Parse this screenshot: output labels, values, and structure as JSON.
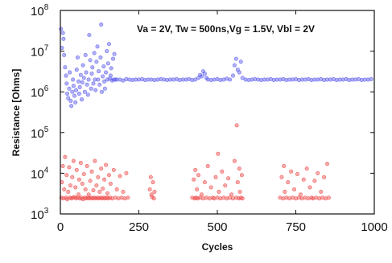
{
  "chart_data": {
    "type": "scatter",
    "annotation": "Va = 2V, Tw = 500ns,Vg = 1.5V, Vbl = 2V",
    "xlabel": "Cycles",
    "ylabel": "Resistance [Ohms]",
    "xlim": [
      0,
      1000
    ],
    "ylim": [
      1000,
      100000000
    ],
    "yscale": "log",
    "xticks": [
      0,
      250,
      500,
      750,
      1000
    ],
    "xtick_labels": [
      "0",
      "250",
      "500",
      "750",
      "1000"
    ],
    "yticks": [
      1000,
      10000,
      100000,
      1000000,
      10000000,
      100000000
    ],
    "ytick_bases": [
      "10",
      "10",
      "10",
      "10",
      "10",
      "10"
    ],
    "ytick_exponents": [
      "3",
      "4",
      "5",
      "6",
      "7",
      "8"
    ],
    "grid": false,
    "legend": "none",
    "colors": {
      "high_resistance": "#5555ee",
      "low_resistance": "#ee4444"
    },
    "series": [
      {
        "values": [
          [
            2,
            35000000
          ],
          [
            5,
            12000000
          ],
          [
            8,
            28000000
          ],
          [
            10,
            20000000
          ],
          [
            12,
            8000000
          ],
          [
            15,
            4000000
          ],
          [
            18,
            2500000
          ],
          [
            20,
            1600000
          ],
          [
            22,
            900000
          ],
          [
            25,
            700000
          ],
          [
            28,
            1200000
          ],
          [
            30,
            3000000
          ],
          [
            33,
            600000
          ],
          [
            35,
            450000
          ],
          [
            38,
            1000000
          ],
          [
            40,
            2000000
          ],
          [
            42,
            1400000
          ],
          [
            45,
            800000
          ],
          [
            48,
            550000
          ],
          [
            50,
            1100000
          ],
          [
            52,
            3500000
          ],
          [
            55,
            7000000
          ],
          [
            58,
            1800000
          ],
          [
            60,
            900000
          ],
          [
            62,
            1300000
          ],
          [
            65,
            2600000
          ],
          [
            68,
            650000
          ],
          [
            70,
            1700000
          ],
          [
            72,
            4500000
          ],
          [
            75,
            2200000
          ],
          [
            78,
            1000000
          ],
          [
            80,
            8000000
          ],
          [
            82,
            3000000
          ],
          [
            85,
            1500000
          ],
          [
            88,
            850000
          ],
          [
            90,
            2000000
          ],
          [
            92,
            25000000
          ],
          [
            95,
            6000000
          ],
          [
            98,
            1200000
          ],
          [
            100,
            2800000
          ],
          [
            102,
            4000000
          ],
          [
            105,
            1600000
          ],
          [
            108,
            9000000
          ],
          [
            110,
            2000000
          ],
          [
            112,
            1100000
          ],
          [
            115,
            5500000
          ],
          [
            118,
            13000000
          ],
          [
            120,
            2000000
          ],
          [
            122,
            3200000
          ],
          [
            125,
            1500000
          ],
          [
            128,
            7000000
          ],
          [
            130,
            45000000
          ],
          [
            132,
            1000000
          ],
          [
            135,
            2400000
          ],
          [
            138,
            4200000
          ],
          [
            140,
            1800000
          ],
          [
            142,
            1200000
          ],
          [
            145,
            3000000
          ],
          [
            148,
            10000000
          ],
          [
            150,
            2000000
          ],
          [
            152,
            5000000
          ],
          [
            155,
            15000000
          ],
          [
            158,
            2100000
          ],
          [
            160,
            2500000
          ],
          [
            162,
            3800000
          ],
          [
            165,
            1900000
          ],
          [
            168,
            6500000
          ],
          [
            170,
            2000000
          ],
          [
            172,
            8500000
          ],
          [
            175,
            2000000
          ],
          [
            180,
            2000000
          ],
          [
            190,
            2000000
          ],
          [
            200,
            1900000
          ],
          [
            210,
            2050000
          ],
          [
            220,
            2000000
          ],
          [
            230,
            1950000
          ],
          [
            240,
            2000000
          ],
          [
            250,
            2000000
          ],
          [
            260,
            2050000
          ],
          [
            270,
            1950000
          ],
          [
            280,
            2000000
          ],
          [
            290,
            2000000
          ],
          [
            300,
            1950000
          ],
          [
            310,
            2000000
          ],
          [
            320,
            2050000
          ],
          [
            330,
            2000000
          ],
          [
            340,
            1950000
          ],
          [
            350,
            2000000
          ],
          [
            360,
            2000000
          ],
          [
            370,
            2050000
          ],
          [
            380,
            1950000
          ],
          [
            390,
            2000000
          ],
          [
            400,
            2000000
          ],
          [
            410,
            2050000
          ],
          [
            420,
            1950000
          ],
          [
            430,
            2000000
          ],
          [
            440,
            2200000
          ],
          [
            445,
            2600000
          ],
          [
            450,
            2400000
          ],
          [
            455,
            3200000
          ],
          [
            460,
            2800000
          ],
          [
            465,
            2200000
          ],
          [
            470,
            2000000
          ],
          [
            480,
            1950000
          ],
          [
            490,
            2000000
          ],
          [
            500,
            2050000
          ],
          [
            510,
            1950000
          ],
          [
            520,
            2000000
          ],
          [
            530,
            2100000
          ],
          [
            540,
            2000000
          ],
          [
            550,
            2500000
          ],
          [
            555,
            4500000
          ],
          [
            560,
            6500000
          ],
          [
            565,
            3500000
          ],
          [
            570,
            3000000
          ],
          [
            575,
            5500000
          ],
          [
            580,
            2200000
          ],
          [
            590,
            2000000
          ],
          [
            600,
            1950000
          ],
          [
            610,
            2000000
          ],
          [
            620,
            2050000
          ],
          [
            630,
            2000000
          ],
          [
            640,
            1950000
          ],
          [
            650,
            2000000
          ],
          [
            660,
            2000000
          ],
          [
            670,
            2050000
          ],
          [
            680,
            1950000
          ],
          [
            690,
            2000000
          ],
          [
            700,
            2000000
          ],
          [
            710,
            2050000
          ],
          [
            720,
            1950000
          ],
          [
            730,
            2000000
          ],
          [
            740,
            2000000
          ],
          [
            750,
            2050000
          ],
          [
            760,
            1950000
          ],
          [
            770,
            2000000
          ],
          [
            780,
            2000000
          ],
          [
            790,
            2050000
          ],
          [
            800,
            1950000
          ],
          [
            810,
            2000000
          ],
          [
            820,
            2000000
          ],
          [
            830,
            2050000
          ],
          [
            840,
            1950000
          ],
          [
            850,
            2000000
          ],
          [
            860,
            2000000
          ],
          [
            870,
            2050000
          ],
          [
            880,
            1950000
          ],
          [
            890,
            2000000
          ],
          [
            900,
            2000000
          ],
          [
            910,
            2050000
          ],
          [
            920,
            1950000
          ],
          [
            930,
            2000000
          ],
          [
            940,
            2000000
          ],
          [
            950,
            2050000
          ],
          [
            960,
            1950000
          ],
          [
            970,
            2000000
          ],
          [
            980,
            2000000
          ],
          [
            990,
            2050000
          ]
        ]
      },
      {
        "values": [
          [
            3,
            2500
          ],
          [
            5,
            6000
          ],
          [
            8,
            15000
          ],
          [
            10,
            2400
          ],
          [
            12,
            4000
          ],
          [
            15,
            25000
          ],
          [
            18,
            2500
          ],
          [
            20,
            9000
          ],
          [
            22,
            2300
          ],
          [
            25,
            3500
          ],
          [
            28,
            14000
          ],
          [
            30,
            2500
          ],
          [
            32,
            5000
          ],
          [
            35,
            2400
          ],
          [
            38,
            8000
          ],
          [
            40,
            2500
          ],
          [
            42,
            20000
          ],
          [
            45,
            2600
          ],
          [
            48,
            4500
          ],
          [
            50,
            2400
          ],
          [
            52,
            12000
          ],
          [
            55,
            2500
          ],
          [
            58,
            3000
          ],
          [
            60,
            7000
          ],
          [
            62,
            2400
          ],
          [
            65,
            18000
          ],
          [
            68,
            2500
          ],
          [
            70,
            5500
          ],
          [
            72,
            2300
          ],
          [
            75,
            9500
          ],
          [
            78,
            2500
          ],
          [
            80,
            4000
          ],
          [
            82,
            2400
          ],
          [
            85,
            15000
          ],
          [
            88,
            2500
          ],
          [
            90,
            3000
          ],
          [
            92,
            2400
          ],
          [
            95,
            6500
          ],
          [
            98,
            2500
          ],
          [
            100,
            11000
          ],
          [
            102,
            2400
          ],
          [
            105,
            3800
          ],
          [
            108,
            2500
          ],
          [
            110,
            20000
          ],
          [
            112,
            2400
          ],
          [
            115,
            5000
          ],
          [
            118,
            2500
          ],
          [
            120,
            8000
          ],
          [
            122,
            2400
          ],
          [
            125,
            3500
          ],
          [
            128,
            2500
          ],
          [
            130,
            13000
          ],
          [
            132,
            2400
          ],
          [
            135,
            4200
          ],
          [
            138,
            2500
          ],
          [
            140,
            7000
          ],
          [
            142,
            2400
          ],
          [
            145,
            16000
          ],
          [
            148,
            2500
          ],
          [
            150,
            3200
          ],
          [
            152,
            2400
          ],
          [
            155,
            9000
          ],
          [
            158,
            2500
          ],
          [
            160,
            5500
          ],
          [
            165,
            2400
          ],
          [
            170,
            12000
          ],
          [
            175,
            2500
          ],
          [
            180,
            4000
          ],
          [
            185,
            2400
          ],
          [
            190,
            8500
          ],
          [
            195,
            2500
          ],
          [
            200,
            3500
          ],
          [
            205,
            2400
          ],
          [
            210,
            10000
          ],
          [
            215,
            2500
          ],
          [
            285,
            4000
          ],
          [
            288,
            8000
          ],
          [
            290,
            3000
          ],
          [
            292,
            2600
          ],
          [
            295,
            6000
          ],
          [
            298,
            2400
          ],
          [
            300,
            3500
          ],
          [
            420,
            2500
          ],
          [
            425,
            7000
          ],
          [
            428,
            2400
          ],
          [
            430,
            12000
          ],
          [
            432,
            2500
          ],
          [
            435,
            4000
          ],
          [
            438,
            2400
          ],
          [
            440,
            9000
          ],
          [
            445,
            2500
          ],
          [
            450,
            3000
          ],
          [
            455,
            2400
          ],
          [
            460,
            6000
          ],
          [
            465,
            2500
          ],
          [
            470,
            15000
          ],
          [
            475,
            2400
          ],
          [
            480,
            4500
          ],
          [
            485,
            2500
          ],
          [
            490,
            2400
          ],
          [
            495,
            8000
          ],
          [
            500,
            2500
          ],
          [
            502,
            30000
          ],
          [
            505,
            3500
          ],
          [
            510,
            2400
          ],
          [
            515,
            11000
          ],
          [
            520,
            2500
          ],
          [
            525,
            5000
          ],
          [
            530,
            2400
          ],
          [
            535,
            7500
          ],
          [
            540,
            2500
          ],
          [
            545,
            3000
          ],
          [
            550,
            2400
          ],
          [
            555,
            20000
          ],
          [
            560,
            2500
          ],
          [
            562,
            150000
          ],
          [
            565,
            6000
          ],
          [
            568,
            2400
          ],
          [
            570,
            13000
          ],
          [
            572,
            3500
          ],
          [
            575,
            2500
          ],
          [
            578,
            9000
          ],
          [
            580,
            2400
          ],
          [
            700,
            2500
          ],
          [
            705,
            8000
          ],
          [
            710,
            2400
          ],
          [
            712,
            15000
          ],
          [
            715,
            3500
          ],
          [
            720,
            2500
          ],
          [
            725,
            6000
          ],
          [
            730,
            2400
          ],
          [
            735,
            11000
          ],
          [
            740,
            2500
          ],
          [
            745,
            4000
          ],
          [
            750,
            2400
          ],
          [
            755,
            9500
          ],
          [
            760,
            2500
          ],
          [
            765,
            3000
          ],
          [
            770,
            2400
          ],
          [
            775,
            7000
          ],
          [
            780,
            2500
          ],
          [
            785,
            13000
          ],
          [
            790,
            2400
          ],
          [
            795,
            4500
          ],
          [
            800,
            2500
          ],
          [
            805,
            2400
          ],
          [
            810,
            6500
          ],
          [
            815,
            2500
          ],
          [
            820,
            10000
          ],
          [
            825,
            2400
          ],
          [
            830,
            3500
          ],
          [
            835,
            2500
          ],
          [
            840,
            8000
          ],
          [
            845,
            2400
          ],
          [
            850,
            17000
          ],
          [
            855,
            2500
          ]
        ]
      }
    ]
  }
}
